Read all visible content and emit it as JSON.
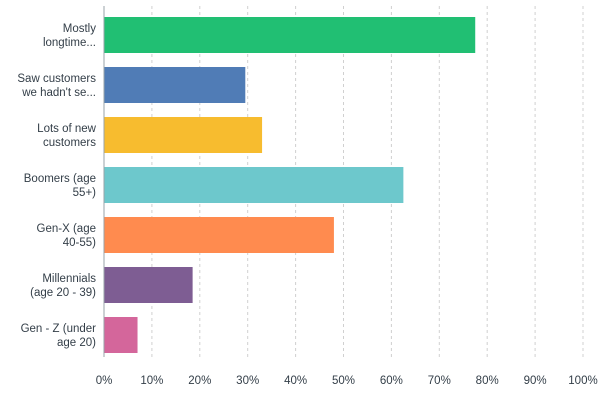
{
  "chart_data": {
    "type": "bar",
    "orientation": "horizontal",
    "categories": [
      [
        "Mostly",
        "longtime..."
      ],
      [
        "Saw customers",
        "we hadn't se..."
      ],
      [
        "Lots of new",
        "customers"
      ],
      [
        "Boomers (age",
        "55+)"
      ],
      [
        "Gen-X (age",
        "40-55)"
      ],
      [
        "Millennials",
        "(age 20 - 39)"
      ],
      [
        "Gen - Z (under",
        "age 20)"
      ]
    ],
    "values": [
      77.5,
      29.5,
      33.0,
      62.5,
      48.0,
      18.5,
      7.0
    ],
    "colors": [
      "#21bf73",
      "#507cb6",
      "#f7bc2f",
      "#6dc8cc",
      "#ff8b4f",
      "#7e5d93",
      "#d4669b"
    ],
    "xlim": [
      0,
      100
    ],
    "xticks": [
      "0%",
      "10%",
      "20%",
      "30%",
      "40%",
      "50%",
      "60%",
      "70%",
      "80%",
      "90%",
      "100%"
    ],
    "grid": true,
    "grid_style": "dashed vertical"
  }
}
